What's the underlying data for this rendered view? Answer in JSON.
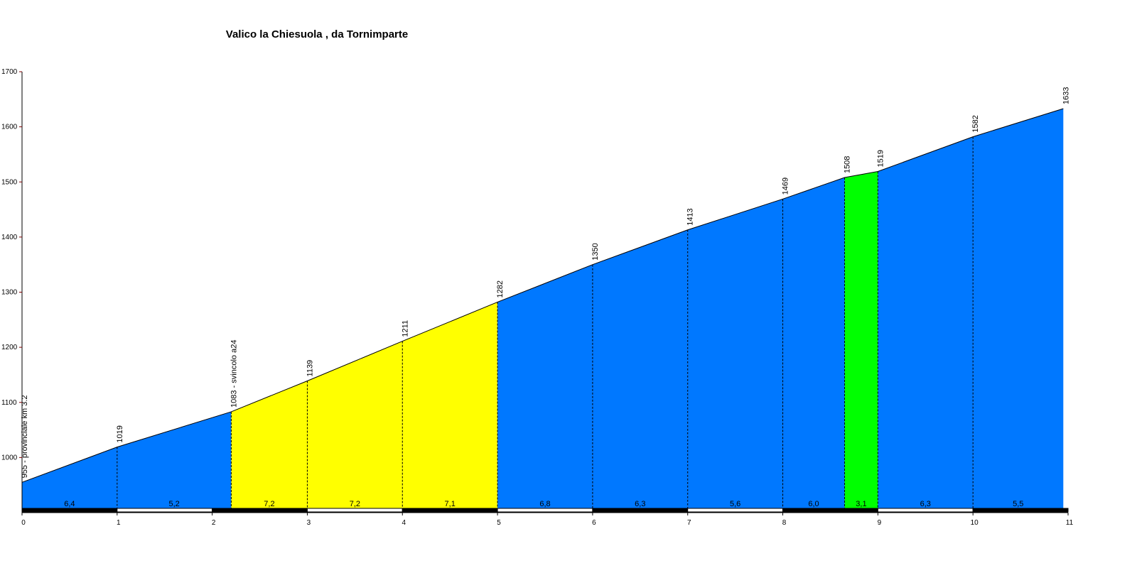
{
  "chart_data": {
    "type": "area",
    "title": "Valico la Chiesuola , da Tornimparte",
    "x": [
      0,
      1,
      2.2,
      3,
      4,
      5,
      6,
      7,
      8,
      8.65,
      9,
      10,
      10.95
    ],
    "values": [
      955,
      1019,
      1083,
      1139,
      1211,
      1282,
      1350,
      1413,
      1469,
      1508,
      1519,
      1582,
      1633
    ],
    "value_labels": [
      "955 - provinciale km 3.2",
      "1019",
      "1083 - svincolo a24",
      "1139",
      "1211",
      "1282",
      "1350",
      "1413",
      "1469",
      "1508",
      "1519",
      "1582",
      "1633"
    ],
    "grades": [
      6.4,
      5.2,
      7.2,
      7.2,
      7.1,
      6.8,
      6.3,
      5.6,
      6.0,
      3.1,
      6.3,
      5.5
    ],
    "grade_labels": [
      "6,4",
      "5,2",
      "7,2",
      "7,2",
      "7,1",
      "6,8",
      "6,3",
      "5,6",
      "6,0",
      "3,1",
      "6,3",
      "5,5"
    ],
    "grade_colors": [
      "#0078ff",
      "#0078ff",
      "#ffff00",
      "#ffff00",
      "#ffff00",
      "#0078ff",
      "#0078ff",
      "#0078ff",
      "#0078ff",
      "#00ff00",
      "#0078ff",
      "#0078ff"
    ],
    "xlim": [
      0,
      11
    ],
    "xticks": [
      0,
      1,
      2,
      3,
      4,
      5,
      6,
      7,
      8,
      9,
      10,
      11
    ],
    "ylim": [
      900,
      1700
    ],
    "yticks": [
      1000,
      1100,
      1200,
      1300,
      1400,
      1500,
      1600,
      1700
    ]
  }
}
